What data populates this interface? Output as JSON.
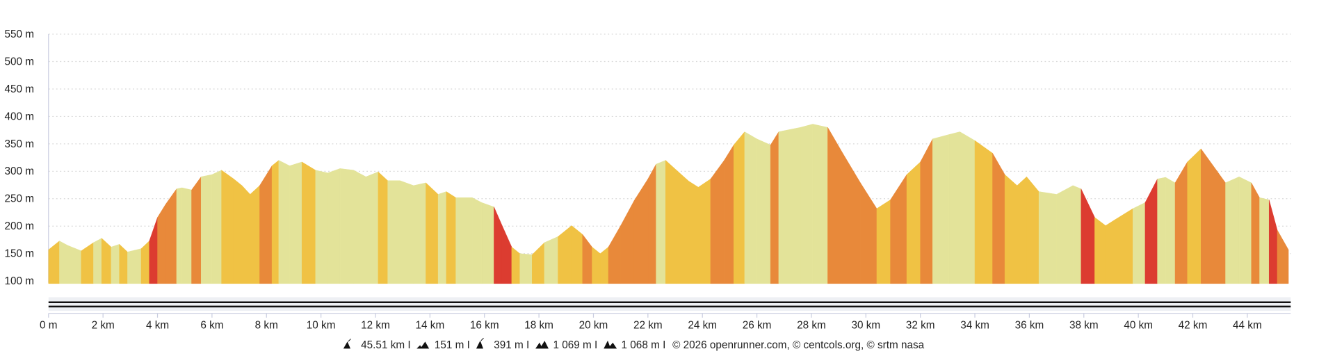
{
  "chart_data": {
    "type": "area",
    "title": "",
    "xlabel": "",
    "ylabel": "",
    "xlim": [
      0,
      45.51
    ],
    "ylim": [
      100,
      550
    ],
    "grid": true,
    "y_ticks": [
      "100 m",
      "150 m",
      "200 m",
      "250 m",
      "300 m",
      "350 m",
      "400 m",
      "450 m",
      "500 m",
      "550 m"
    ],
    "x_ticks": [
      "0 m",
      "2 km",
      "4 km",
      "6 km",
      "8 km",
      "10 km",
      "12 km",
      "14 km",
      "16 km",
      "18 km",
      "20 km",
      "22 km",
      "24 km",
      "26 km",
      "28 km",
      "30 km",
      "32 km",
      "34 km",
      "36 km",
      "38 km",
      "40 km",
      "42 km",
      "44 km"
    ],
    "series": [
      {
        "x": [
          0,
          0.4,
          0.7,
          1.2,
          1.65,
          1.95,
          2.3,
          2.6,
          2.9,
          3.4,
          3.7,
          4.0,
          4.3,
          4.7,
          4.9,
          5.25,
          5.6,
          6.0,
          6.35,
          6.8,
          7.1,
          7.4,
          7.75,
          8.2,
          8.45,
          8.85,
          9.3,
          9.8,
          10.25,
          10.7,
          11.2,
          11.65,
          12.1,
          12.45,
          12.9,
          13.4,
          13.85,
          14.3,
          14.6,
          14.95,
          15.55,
          15.9,
          16.35,
          16.65,
          17.0,
          17.3,
          17.75,
          18.2,
          18.7,
          19.2,
          19.6,
          19.95,
          20.25,
          20.55,
          21.0,
          21.5,
          22.0,
          22.3,
          22.65,
          23.05,
          23.5,
          23.85,
          24.3,
          24.8,
          25.15,
          25.55,
          26.0,
          26.5,
          26.8,
          27.6,
          28.05,
          28.6,
          29.15,
          29.8,
          30.4,
          30.9,
          31.5,
          32.0,
          32.45,
          33.05,
          33.45,
          34.0,
          34.65,
          35.1,
          35.55,
          35.9,
          36.35,
          37.0,
          37.6,
          37.9,
          38.4,
          38.8,
          39.15,
          39.8,
          40.25,
          40.7,
          41.0,
          41.35,
          41.8,
          42.3,
          42.75,
          43.2,
          43.7,
          44.15,
          44.45,
          44.8,
          45.1,
          45.51
        ],
        "y": [
          157,
          173,
          165,
          155,
          170,
          178,
          162,
          167,
          153,
          159,
          173,
          216,
          240,
          268,
          270,
          266,
          290,
          294,
          302,
          286,
          274,
          258,
          274,
          310,
          320,
          310,
          317,
          302,
          297,
          305,
          302,
          290,
          299,
          283,
          283,
          274,
          279,
          258,
          263,
          252,
          252,
          243,
          235,
          201,
          162,
          150,
          148,
          170,
          181,
          201,
          185,
          162,
          150,
          162,
          201,
          247,
          286,
          313,
          320,
          302,
          282,
          271,
          286,
          320,
          348,
          372,
          359,
          348,
          372,
          380,
          386,
          380,
          333,
          279,
          232,
          248,
          294,
          317,
          359,
          367,
          372,
          356,
          333,
          294,
          274,
          290,
          263,
          258,
          274,
          268,
          216,
          201,
          212,
          232,
          243,
          286,
          289,
          279,
          317,
          341,
          310,
          279,
          290,
          279,
          252,
          248,
          193,
          157
        ]
      }
    ],
    "colors": {
      "flat": "#e3e399",
      "moderate": "#f0c244",
      "steep": "#e8893a",
      "very_steep": "#dc3c30",
      "axis": "#c9cde0"
    }
  },
  "footer": {
    "distance": "45.51 km",
    "min_altitude": "151 m",
    "max_altitude": "391 m",
    "elevation_gain": "1 069 m",
    "elevation_loss": "1 068 m",
    "credits": "© 2026 openrunner.com, © centcols.org, © srtm nasa",
    "separator": "I"
  }
}
